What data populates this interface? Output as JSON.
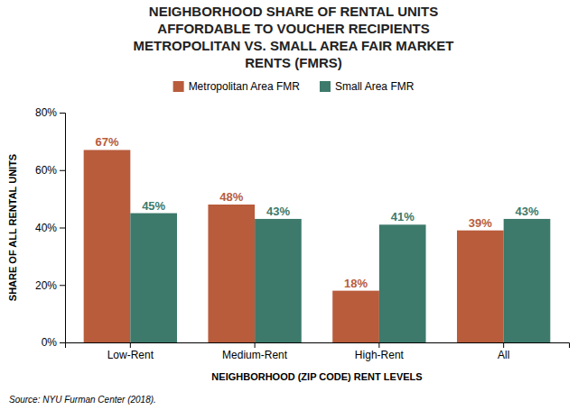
{
  "chart_data": {
    "type": "bar",
    "title": "NEIGHBORHOOD SHARE OF RENTAL UNITS\nAFFORDABLE TO VOUCHER RECIPIENTS\nMETROPOLITAN VS. SMALL AREA FAIR MARKET\nRENTS (FMRS)",
    "x_label": "NEIGHBORHOOD (ZIP CODE) RENT LEVELS",
    "y_label": "SHARE OF ALL RENTAL UNITS",
    "source": "Source: NYU Furman Center (2018).",
    "categories": [
      "Low-Rent",
      "Medium-Rent",
      "High-Rent",
      "All"
    ],
    "series": [
      {
        "name": "Metropolitan Area FMR",
        "color": "#b85c3c",
        "values": [
          67,
          48,
          18,
          39
        ],
        "value_labels": [
          "67%",
          "48%",
          "18%",
          "39%"
        ]
      },
      {
        "name": "Small Area FMR",
        "color": "#3d7a6b",
        "values": [
          45,
          43,
          41,
          43
        ],
        "value_labels": [
          "45%",
          "43%",
          "41%",
          "43%"
        ]
      }
    ],
    "ylim": [
      0,
      80
    ],
    "yticks": [
      {
        "value": 0,
        "label": "0%"
      },
      {
        "value": 20,
        "label": "20%"
      },
      {
        "value": 40,
        "label": "40%"
      },
      {
        "value": 60,
        "label": "60%"
      },
      {
        "value": 80,
        "label": "80%"
      }
    ],
    "grid": false,
    "legend": "top",
    "data_labels": true
  }
}
